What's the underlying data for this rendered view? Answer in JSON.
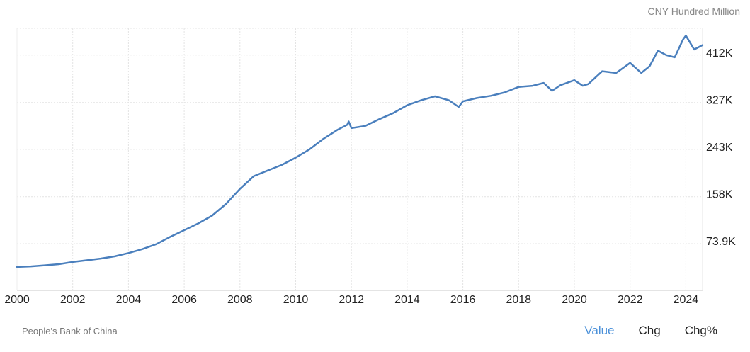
{
  "unit_label": "CNY Hundred Million",
  "source": "People's Bank of China",
  "controls": [
    {
      "label": "Value",
      "active": true
    },
    {
      "label": "Chg",
      "active": false
    },
    {
      "label": "Chg%",
      "active": false
    }
  ],
  "colors": {
    "line": "#4a7fbd",
    "grid": "#e4e4e4",
    "active": "#4a90d9"
  },
  "chart_data": {
    "type": "line",
    "title": "",
    "xlabel": "",
    "ylabel": "",
    "x_ticks": [
      2000,
      2002,
      2004,
      2006,
      2008,
      2010,
      2012,
      2014,
      2016,
      2018,
      2020,
      2022,
      2024
    ],
    "x_tick_labels": [
      "2000",
      "2002",
      "2004",
      "2006",
      "2008",
      "2010",
      "2012",
      "2014",
      "2016",
      "2018",
      "2020",
      "2022",
      "2024"
    ],
    "y_ticks": [
      73900,
      158000,
      243000,
      327000,
      412000
    ],
    "y_tick_labels": [
      "73.9K",
      "158K",
      "243K",
      "327K",
      "412K"
    ],
    "xlim": [
      2000.0,
      2024.6
    ],
    "ylim": [
      -10000,
      460000
    ],
    "grid": true,
    "y_axis_position": "right",
    "series": [
      {
        "values": [
          [
            2000.0,
            32000
          ],
          [
            2000.5,
            33000
          ],
          [
            2001.0,
            35000
          ],
          [
            2001.5,
            37000
          ],
          [
            2002.0,
            41000
          ],
          [
            2002.5,
            44000
          ],
          [
            2003.0,
            47000
          ],
          [
            2003.5,
            51000
          ],
          [
            2004.0,
            57000
          ],
          [
            2004.5,
            64000
          ],
          [
            2005.0,
            73000
          ],
          [
            2005.5,
            86000
          ],
          [
            2006.0,
            98000
          ],
          [
            2006.5,
            110000
          ],
          [
            2007.0,
            124000
          ],
          [
            2007.5,
            145000
          ],
          [
            2008.0,
            172000
          ],
          [
            2008.5,
            195000
          ],
          [
            2009.0,
            205000
          ],
          [
            2009.5,
            215000
          ],
          [
            2010.0,
            228000
          ],
          [
            2010.5,
            243000
          ],
          [
            2011.0,
            262000
          ],
          [
            2011.5,
            278000
          ],
          [
            2011.85,
            287000
          ],
          [
            2011.9,
            293000
          ],
          [
            2012.0,
            281000
          ],
          [
            2012.5,
            285000
          ],
          [
            2013.0,
            297000
          ],
          [
            2013.5,
            308000
          ],
          [
            2014.0,
            322000
          ],
          [
            2014.5,
            331000
          ],
          [
            2015.0,
            338000
          ],
          [
            2015.5,
            331000
          ],
          [
            2015.85,
            319000
          ],
          [
            2016.0,
            329000
          ],
          [
            2016.5,
            335000
          ],
          [
            2017.0,
            339000
          ],
          [
            2017.5,
            345000
          ],
          [
            2018.0,
            355000
          ],
          [
            2018.5,
            357000
          ],
          [
            2018.9,
            362000
          ],
          [
            2019.2,
            348000
          ],
          [
            2019.5,
            358000
          ],
          [
            2020.0,
            367000
          ],
          [
            2020.3,
            357000
          ],
          [
            2020.5,
            360000
          ],
          [
            2021.0,
            383000
          ],
          [
            2021.5,
            380000
          ],
          [
            2022.0,
            398000
          ],
          [
            2022.4,
            380000
          ],
          [
            2022.7,
            392000
          ],
          [
            2023.0,
            420000
          ],
          [
            2023.3,
            412000
          ],
          [
            2023.6,
            408000
          ],
          [
            2023.9,
            440000
          ],
          [
            2024.0,
            447000
          ],
          [
            2024.3,
            422000
          ],
          [
            2024.6,
            430000
          ]
        ]
      }
    ]
  }
}
